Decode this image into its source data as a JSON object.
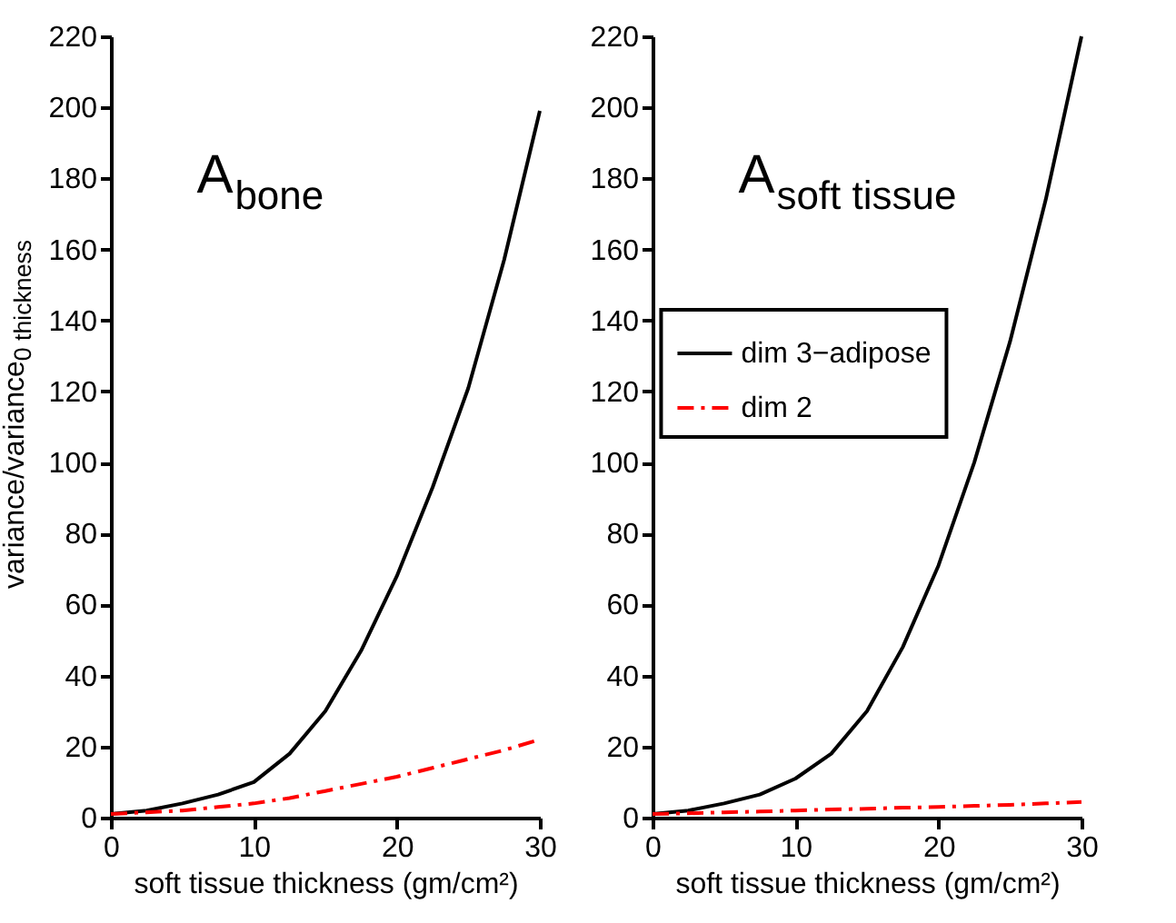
{
  "chart_data": [
    {
      "type": "line",
      "x": [
        0,
        2.5,
        5,
        7.5,
        10,
        12.5,
        15,
        17.5,
        20,
        22.5,
        25,
        27.5,
        30
      ],
      "series": [
        {
          "color": "#000000",
          "line_style": "solid",
          "values": [
            1,
            2,
            4,
            6.5,
            10,
            18,
            30,
            47,
            68,
            93,
            121,
            157,
            199
          ]
        },
        {
          "color": "#ff0000",
          "line_style": "dashed",
          "values": [
            1,
            1.5,
            2,
            3,
            4,
            5.5,
            7.5,
            9.5,
            11.5,
            14,
            16.5,
            19,
            22
          ]
        }
      ],
      "xlim": [
        0,
        30
      ],
      "ylim": [
        0,
        220
      ],
      "xticks": [
        0,
        10,
        20,
        30
      ],
      "yticks": [
        0,
        20,
        40,
        60,
        80,
        100,
        120,
        140,
        160,
        180,
        200,
        220
      ],
      "xlabel": "soft tissue thickness (gm/cm²)",
      "ylabel": "variance/variance$_{0 thickness}$",
      "annotations": [
        "A$_{bone}$"
      ],
      "grid": false,
      "legend": false
    },
    {
      "type": "line",
      "x": [
        0,
        2.5,
        5,
        7.5,
        10,
        12.5,
        15,
        17.5,
        20,
        22.5,
        25,
        27.5,
        30
      ],
      "series": [
        {
          "name": "dim 3−adipose",
          "color": "#000000",
          "line_style": "solid",
          "values": [
            1,
            2,
            4,
            6.5,
            11,
            18,
            30,
            48,
            71,
            100,
            134,
            174,
            220
          ]
        },
        {
          "name": "dim 2",
          "color": "#ff0000",
          "line_style": "dashed",
          "values": [
            1,
            1.2,
            1.5,
            1.7,
            2,
            2.3,
            2.5,
            2.8,
            3,
            3.3,
            3.6,
            4,
            4.4
          ]
        }
      ],
      "xlim": [
        0,
        30
      ],
      "ylim": [
        0,
        220
      ],
      "xticks": [
        0,
        10,
        20,
        30
      ],
      "yticks": [
        0,
        20,
        40,
        60,
        80,
        100,
        120,
        140,
        160,
        180,
        200,
        220
      ],
      "xlabel": "soft tissue thickness (gm/cm²)",
      "annotations": [
        "A$_{soft tissue}$"
      ],
      "grid": false,
      "legend": "left"
    }
  ]
}
